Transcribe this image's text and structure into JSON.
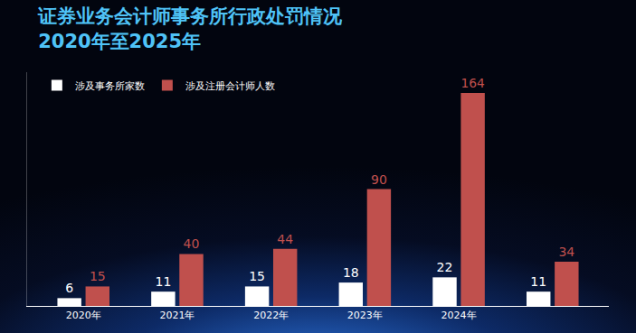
{
  "chart_data": {
    "type": "bar",
    "title": "证券业务会计师事务所行政处罚情况",
    "subtitle": "2020年至2025年",
    "categories": [
      "2020年",
      "2021年",
      "2022年",
      "2023年",
      "2024年",
      null
    ],
    "series": [
      {
        "name": "涉及事务所家数",
        "color": "#ffffff",
        "values": [
          6,
          11,
          15,
          18,
          22,
          11
        ]
      },
      {
        "name": "涉及注册会计师人数",
        "color": "#c0504d",
        "values": [
          15,
          40,
          44,
          90,
          164,
          34
        ]
      }
    ],
    "ylim": [
      0,
      180
    ],
    "grid": false,
    "legend": "upper left",
    "data_labels": true,
    "tick_labels": "x"
  }
}
